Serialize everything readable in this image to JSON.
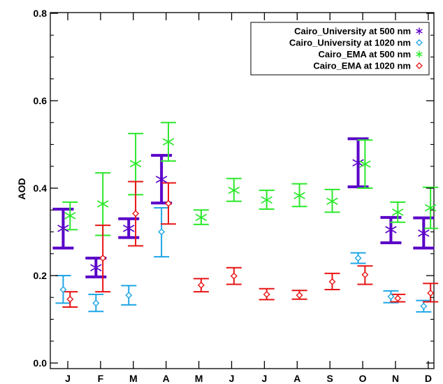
{
  "chart_data": {
    "type": "scatter",
    "title": "",
    "xlabel": "",
    "ylabel": "AOD",
    "ylim": [
      0.0,
      0.8
    ],
    "yticks": [
      0.0,
      0.2,
      0.4,
      0.6,
      0.8
    ],
    "ytick_labels": [
      "0.0",
      "0.2",
      "0.4",
      "0.6",
      "0.8"
    ],
    "categories": [
      "J",
      "F",
      "M",
      "A",
      "M",
      "J",
      "J",
      "A",
      "S",
      "O",
      "N",
      "D"
    ],
    "grid": false,
    "legend_position": "top-right",
    "series": [
      {
        "name": "Cairo_University at 500 nm",
        "color": "#5a00c8",
        "marker": "asterisk",
        "offset": -0.14,
        "values": [
          0.308,
          0.218,
          0.308,
          0.42,
          null,
          null,
          null,
          null,
          null,
          0.458,
          0.305,
          0.297
        ],
        "err_low": [
          0.263,
          0.197,
          0.287,
          0.366,
          null,
          null,
          null,
          null,
          null,
          0.403,
          0.275,
          0.263
        ],
        "err_high": [
          0.352,
          0.24,
          0.33,
          0.475,
          null,
          null,
          null,
          null,
          null,
          0.513,
          0.333,
          0.332
        ]
      },
      {
        "name": "Cairo_University at 1020 nm",
        "color": "#1ea5e6",
        "marker": "diamond",
        "offset": -0.14,
        "values": [
          0.168,
          0.137,
          0.155,
          0.3,
          null,
          null,
          null,
          null,
          null,
          0.24,
          0.152,
          0.13
        ],
        "err_low": [
          0.137,
          0.118,
          0.133,
          0.243,
          null,
          null,
          null,
          null,
          null,
          0.228,
          0.138,
          0.117
        ],
        "err_high": [
          0.2,
          0.157,
          0.177,
          0.355,
          null,
          null,
          null,
          null,
          null,
          0.252,
          0.165,
          0.143
        ]
      },
      {
        "name": "Cairo_EMA at 500 nm",
        "color": "#2ce82c",
        "marker": "asterisk",
        "offset": 0.07,
        "values": [
          0.337,
          0.364,
          0.456,
          0.506,
          0.333,
          0.395,
          0.373,
          0.383,
          0.37,
          0.455,
          0.345,
          0.355
        ],
        "err_low": [
          0.305,
          0.292,
          0.385,
          0.462,
          0.317,
          0.37,
          0.352,
          0.358,
          0.345,
          0.4,
          0.322,
          0.308
        ],
        "err_high": [
          0.368,
          0.435,
          0.525,
          0.55,
          0.35,
          0.422,
          0.395,
          0.41,
          0.397,
          0.51,
          0.368,
          0.402
        ]
      },
      {
        "name": "Cairo_EMA at 1020 nm",
        "color": "#e81414",
        "marker": "diamond",
        "offset": 0.07,
        "values": [
          0.146,
          0.24,
          0.342,
          0.365,
          0.178,
          0.199,
          0.157,
          0.155,
          0.186,
          0.202,
          0.148,
          0.16
        ],
        "err_low": [
          0.128,
          0.163,
          0.268,
          0.318,
          0.163,
          0.18,
          0.145,
          0.146,
          0.168,
          0.18,
          0.14,
          0.14
        ],
        "err_high": [
          0.163,
          0.315,
          0.415,
          0.412,
          0.193,
          0.218,
          0.17,
          0.166,
          0.205,
          0.222,
          0.157,
          0.182
        ]
      }
    ]
  }
}
